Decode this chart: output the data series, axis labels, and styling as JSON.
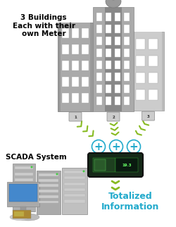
{
  "bg_color": "#ffffff",
  "title_text": "3 Buildings\nEach with their\nown Meter",
  "title_fontsize": 7.5,
  "title_color": "#000000",
  "scada_label": "SCADA System",
  "scada_fontsize": 7.5,
  "totalized_label": "Totalized\nInformation",
  "totalized_fontsize": 9,
  "totalized_color": "#22aacc",
  "arrow_color": "#88bb22",
  "plus_color": "#22aacc",
  "building_dark": "#888888",
  "building_mid": "#999999",
  "building_light": "#bbbbbb",
  "window_color": "#ffffff",
  "window_dark": "#dddddd",
  "relay_bg": "#1a3020",
  "relay_border": "#111111",
  "meter_color": "#cccccc"
}
